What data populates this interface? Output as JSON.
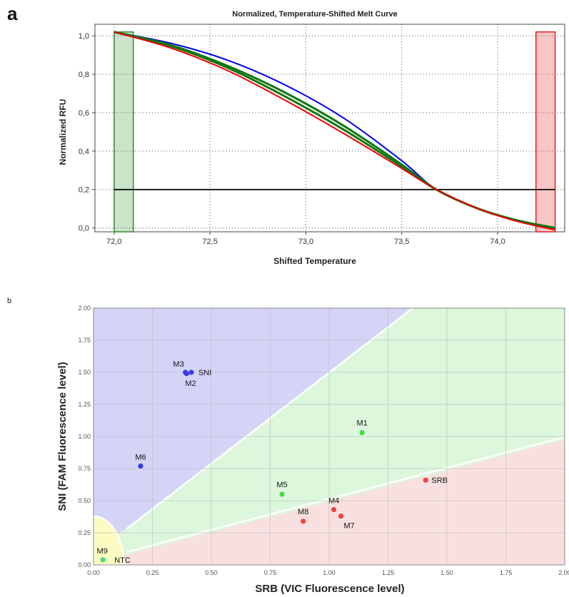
{
  "chart_data": [
    {
      "type": "line",
      "panel": "a",
      "title": "Normalized, Temperature-Shifted Melt Curve",
      "xlabel": "Shifted Temperature",
      "ylabel": "Normalized RFU",
      "xlim": [
        71.9,
        74.35
      ],
      "ylim": [
        -0.02,
        1.06
      ],
      "xticks": [
        "72,0",
        "72,5",
        "73,0",
        "73,5",
        "74,0"
      ],
      "xtick_values": [
        72.0,
        72.5,
        73.0,
        73.5,
        74.0
      ],
      "yticks": [
        "0,0",
        "0,2",
        "0,4",
        "0,6",
        "0,8",
        "1,0"
      ],
      "ytick_values": [
        0.0,
        0.2,
        0.4,
        0.6,
        0.8,
        1.0
      ],
      "grid": true,
      "threshold": 0.2,
      "regions": [
        {
          "x": [
            72.0,
            72.1
          ],
          "color": "#2e8b2e"
        },
        {
          "x": [
            74.2,
            74.3
          ],
          "color": "#e02020"
        }
      ],
      "series": [
        {
          "color": "#0000ee",
          "x": [
            72.0,
            72.3,
            72.6,
            72.9,
            73.2,
            73.5,
            73.68,
            73.9,
            74.1,
            74.3
          ],
          "y": [
            1.02,
            0.96,
            0.87,
            0.74,
            0.57,
            0.35,
            0.2,
            0.1,
            0.04,
            0.0
          ]
        },
        {
          "color": "#117711",
          "x": [
            72.0,
            72.3,
            72.6,
            72.9,
            73.2,
            73.5,
            73.68,
            73.9,
            74.1,
            74.3
          ],
          "y": [
            1.02,
            0.95,
            0.84,
            0.7,
            0.53,
            0.33,
            0.2,
            0.1,
            0.04,
            0.0
          ]
        },
        {
          "color": "#117711",
          "x": [
            72.0,
            72.3,
            72.6,
            72.9,
            73.2,
            73.5,
            73.68,
            73.9,
            74.1,
            74.3
          ],
          "y": [
            1.02,
            0.945,
            0.83,
            0.68,
            0.51,
            0.32,
            0.2,
            0.1,
            0.04,
            0.0
          ]
        },
        {
          "color": "#ee0000",
          "x": [
            72.0,
            72.3,
            72.6,
            72.9,
            73.2,
            73.5,
            73.68,
            73.9,
            74.1,
            74.3
          ],
          "y": [
            1.02,
            0.935,
            0.815,
            0.66,
            0.49,
            0.31,
            0.2,
            0.1,
            0.035,
            -0.01
          ]
        }
      ]
    },
    {
      "type": "scatter",
      "panel": "b",
      "xlabel": "SRB  (VIC Fluorescence level)",
      "ylabel": "SNI  (FAM Fluorescence level)",
      "xlim": [
        0.0,
        2.0
      ],
      "ylim": [
        0.0,
        2.0
      ],
      "xticks": [
        "0.00",
        "0.25",
        "0.50",
        "0.75",
        "1.00",
        "1.25",
        "1.50",
        "1.75",
        "2.00"
      ],
      "yticks": [
        "0.00",
        "0.25",
        "0.50",
        "0.75",
        "1.00",
        "1.25",
        "1.50",
        "1.75",
        "2.00"
      ],
      "tick_values": [
        0.0,
        0.25,
        0.5,
        0.75,
        1.0,
        1.25,
        1.5,
        1.75,
        2.0
      ],
      "grid": true,
      "region_colors": {
        "blue": "#d4d4f7",
        "green": "#dcf7dc",
        "red": "#f9e0e0",
        "yellow": "#fbfbc2"
      },
      "points": [
        {
          "label": "M3",
          "x": 0.39,
          "y": 1.5,
          "color": "#3a3ae8"
        },
        {
          "label": "M2",
          "x": 0.395,
          "y": 1.49,
          "color": "#3a3ae8"
        },
        {
          "label": "SNI",
          "x": 0.415,
          "y": 1.5,
          "color": "#3a3ae8"
        },
        {
          "label": "M6",
          "x": 0.2,
          "y": 0.77,
          "color": "#3a3ae8"
        },
        {
          "label": "M1",
          "x": 1.14,
          "y": 1.03,
          "color": "#44dd44"
        },
        {
          "label": "M5",
          "x": 0.8,
          "y": 0.55,
          "color": "#44dd44"
        },
        {
          "label": "SRB",
          "x": 1.41,
          "y": 0.66,
          "color": "#ee4444"
        },
        {
          "label": "M4",
          "x": 1.02,
          "y": 0.43,
          "color": "#ee4444"
        },
        {
          "label": "M7",
          "x": 1.05,
          "y": 0.38,
          "color": "#ee4444"
        },
        {
          "label": "M8",
          "x": 0.89,
          "y": 0.34,
          "color": "#ee4444"
        },
        {
          "label": "M9",
          "x": 0.04,
          "y": 0.04,
          "color": "#44dd88"
        },
        {
          "label": "NTC",
          "x": 0.04,
          "y": 0.04,
          "color": "#44dd88"
        }
      ]
    }
  ],
  "panel_labels": {
    "a": "a",
    "b": "b"
  }
}
